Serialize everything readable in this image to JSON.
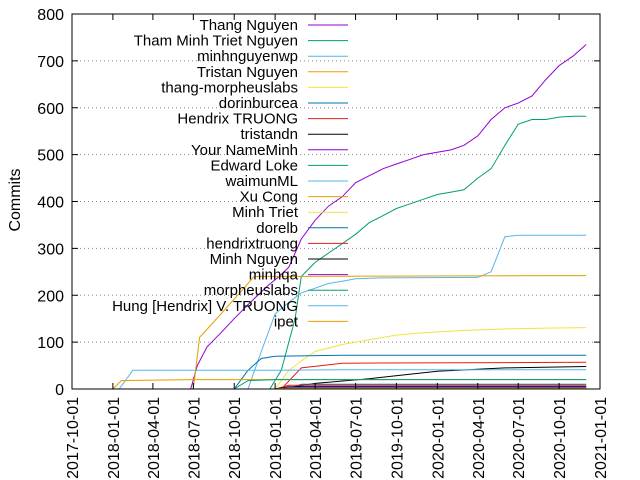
{
  "chart_data": {
    "type": "line",
    "ylabel": "Commits",
    "xlabel": "",
    "ylim": [
      0,
      800
    ],
    "xlim": [
      "2017-10-01",
      "2021-01-01"
    ],
    "grid": {
      "y": true,
      "x": false
    },
    "legend_placement": "top-left",
    "yticks": [
      0,
      100,
      200,
      300,
      400,
      500,
      600,
      700,
      800
    ],
    "xticks": [
      "2017-10-01",
      "2018-01-01",
      "2018-04-01",
      "2018-07-01",
      "2018-10-01",
      "2019-01-01",
      "2019-04-01",
      "2019-07-01",
      "2019-10-01",
      "2020-01-01",
      "2020-04-01",
      "2020-07-01",
      "2020-10-01",
      "2021-01-01"
    ],
    "series": [
      {
        "name": "Thang Nguyen",
        "color": "#9400d3",
        "points": [
          [
            "2018-06-25",
            0
          ],
          [
            "2018-07-10",
            50
          ],
          [
            "2018-08-01",
            90
          ],
          [
            "2018-09-01",
            120
          ],
          [
            "2018-10-01",
            150
          ],
          [
            "2018-11-01",
            180
          ],
          [
            "2018-12-15",
            220
          ],
          [
            "2019-01-10",
            240
          ],
          [
            "2019-02-01",
            260
          ],
          [
            "2019-03-01",
            320
          ],
          [
            "2019-04-01",
            360
          ],
          [
            "2019-05-01",
            390
          ],
          [
            "2019-06-01",
            410
          ],
          [
            "2019-07-01",
            440
          ],
          [
            "2019-08-01",
            455
          ],
          [
            "2019-09-01",
            470
          ],
          [
            "2019-10-01",
            480
          ],
          [
            "2019-11-01",
            490
          ],
          [
            "2019-12-01",
            500
          ],
          [
            "2020-01-01",
            505
          ],
          [
            "2020-02-01",
            510
          ],
          [
            "2020-03-01",
            520
          ],
          [
            "2020-04-01",
            540
          ],
          [
            "2020-05-01",
            575
          ],
          [
            "2020-06-01",
            600
          ],
          [
            "2020-07-01",
            610
          ],
          [
            "2020-08-01",
            625
          ],
          [
            "2020-09-01",
            660
          ],
          [
            "2020-10-01",
            690
          ],
          [
            "2020-11-01",
            710
          ],
          [
            "2020-12-01",
            735
          ]
        ]
      },
      {
        "name": "Tham Minh Triet Nguyen",
        "color": "#009e73",
        "points": [
          [
            "2018-12-20",
            0
          ],
          [
            "2019-01-15",
            40
          ],
          [
            "2019-02-15",
            150
          ],
          [
            "2019-03-01",
            240
          ],
          [
            "2019-04-01",
            270
          ],
          [
            "2019-05-01",
            290
          ],
          [
            "2019-06-01",
            310
          ],
          [
            "2019-07-01",
            330
          ],
          [
            "2019-08-01",
            355
          ],
          [
            "2019-09-01",
            370
          ],
          [
            "2019-10-01",
            385
          ],
          [
            "2019-11-01",
            395
          ],
          [
            "2019-12-01",
            405
          ],
          [
            "2020-01-01",
            415
          ],
          [
            "2020-02-01",
            420
          ],
          [
            "2020-03-01",
            425
          ],
          [
            "2020-04-01",
            450
          ],
          [
            "2020-05-01",
            470
          ],
          [
            "2020-06-01",
            520
          ],
          [
            "2020-07-01",
            565
          ],
          [
            "2020-08-01",
            575
          ],
          [
            "2020-09-01",
            575
          ],
          [
            "2020-10-01",
            580
          ],
          [
            "2020-11-01",
            582
          ],
          [
            "2020-12-01",
            582
          ]
        ]
      },
      {
        "name": "minhnguyenwp",
        "color": "#56b4e9",
        "points": [
          [
            "2018-11-01",
            0
          ],
          [
            "2018-12-01",
            80
          ],
          [
            "2019-01-01",
            160
          ],
          [
            "2019-02-01",
            185
          ],
          [
            "2019-03-01",
            205
          ],
          [
            "2019-04-01",
            215
          ],
          [
            "2019-05-01",
            225
          ],
          [
            "2019-06-01",
            230
          ],
          [
            "2019-07-01",
            235
          ],
          [
            "2019-09-01",
            237
          ],
          [
            "2020-04-01",
            238
          ],
          [
            "2020-05-01",
            250
          ],
          [
            "2020-06-01",
            325
          ],
          [
            "2020-07-01",
            328
          ],
          [
            "2020-12-01",
            328
          ]
        ]
      },
      {
        "name": "Tristan Nguyen",
        "color": "#e69f00",
        "points": [
          [
            "2018-07-01",
            0
          ],
          [
            "2018-07-15",
            110
          ],
          [
            "2018-09-01",
            160
          ],
          [
            "2018-11-15",
            240
          ],
          [
            "2020-12-01",
            242
          ]
        ]
      },
      {
        "name": "thang-morpheuslabs",
        "color": "#f0e442",
        "points": [
          [
            "2019-01-01",
            0
          ],
          [
            "2019-02-01",
            40
          ],
          [
            "2019-03-01",
            60
          ],
          [
            "2019-04-01",
            80
          ],
          [
            "2019-06-01",
            95
          ],
          [
            "2019-08-01",
            105
          ],
          [
            "2019-10-01",
            115
          ],
          [
            "2019-12-01",
            120
          ],
          [
            "2020-03-01",
            125
          ],
          [
            "2020-06-01",
            128
          ],
          [
            "2020-09-01",
            130
          ],
          [
            "2020-12-01",
            131
          ]
        ]
      },
      {
        "name": "dorinburcea",
        "color": "#0072b2",
        "points": [
          [
            "2018-10-01",
            0
          ],
          [
            "2018-11-01",
            40
          ],
          [
            "2018-12-01",
            65
          ],
          [
            "2019-01-01",
            70
          ],
          [
            "2019-06-01",
            72
          ],
          [
            "2020-12-01",
            72
          ]
        ]
      },
      {
        "name": "Hendrix TRUONG",
        "color": "#e51e10",
        "points": [
          [
            "2019-01-15",
            0
          ],
          [
            "2019-03-01",
            45
          ],
          [
            "2019-06-01",
            55
          ],
          [
            "2020-12-01",
            57
          ]
        ]
      },
      {
        "name": "tristandn",
        "color": "#000000",
        "points": [
          [
            "2019-01-15",
            0
          ],
          [
            "2019-04-01",
            12
          ],
          [
            "2019-08-01",
            22
          ],
          [
            "2020-01-01",
            38
          ],
          [
            "2020-06-01",
            45
          ],
          [
            "2020-12-01",
            48
          ]
        ]
      },
      {
        "name": "Your NameMinh",
        "color": "#9400d3",
        "points": [
          [
            "2019-01-01",
            0
          ],
          [
            "2019-03-01",
            5
          ],
          [
            "2020-12-01",
            5
          ]
        ]
      },
      {
        "name": "Edward Loke",
        "color": "#009e73",
        "points": [
          [
            "2019-01-01",
            0
          ],
          [
            "2019-02-01",
            3
          ],
          [
            "2020-12-01",
            3
          ]
        ]
      },
      {
        "name": "waimunML",
        "color": "#56b4e9",
        "points": [
          [
            "2018-01-15",
            0
          ],
          [
            "2018-02-15",
            40
          ],
          [
            "2018-05-01",
            40
          ],
          [
            "2019-01-01",
            40
          ],
          [
            "2019-06-01",
            41
          ],
          [
            "2020-12-01",
            41
          ]
        ]
      },
      {
        "name": "Xu Cong",
        "color": "#e69f00",
        "points": [
          [
            "2018-01-01",
            0
          ],
          [
            "2018-01-20",
            18
          ],
          [
            "2018-07-01",
            20
          ],
          [
            "2020-12-01",
            20
          ]
        ]
      },
      {
        "name": "Minh Triet",
        "color": "#f0e442",
        "points": [
          [
            "2019-03-01",
            0
          ],
          [
            "2019-04-01",
            2
          ],
          [
            "2020-12-01",
            2
          ]
        ]
      },
      {
        "name": "dorelb",
        "color": "#0072b2",
        "points": [
          [
            "2019-02-01",
            0
          ],
          [
            "2019-03-01",
            10
          ],
          [
            "2020-12-01",
            10
          ]
        ]
      },
      {
        "name": "hendrixtruong",
        "color": "#e51e10",
        "points": [
          [
            "2019-01-01",
            0
          ],
          [
            "2019-02-01",
            8
          ],
          [
            "2020-12-01",
            8
          ]
        ]
      },
      {
        "name": "Minh Nguyen",
        "color": "#000000",
        "points": [
          [
            "2019-01-01",
            0
          ],
          [
            "2019-02-01",
            5
          ],
          [
            "2020-12-01",
            5
          ]
        ]
      },
      {
        "name": "minhqa",
        "color": "#9400d3",
        "points": [
          [
            "2019-01-01",
            0
          ],
          [
            "2019-02-01",
            3
          ],
          [
            "2020-12-01",
            3
          ]
        ]
      },
      {
        "name": "morpheuslabs",
        "color": "#009e73",
        "points": [
          [
            "2018-10-01",
            0
          ],
          [
            "2018-11-01",
            18
          ],
          [
            "2019-01-01",
            20
          ],
          [
            "2020-12-01",
            20
          ]
        ]
      },
      {
        "name": "Hung [Hendrix] V. TRUONG",
        "color": "#56b4e9",
        "points": [
          [
            "2019-01-01",
            0
          ],
          [
            "2019-02-01",
            2
          ],
          [
            "2020-12-01",
            2
          ]
        ]
      },
      {
        "name": "ipet",
        "color": "#e69f00",
        "points": [
          [
            "2019-01-01",
            0
          ],
          [
            "2019-01-15",
            1
          ],
          [
            "2020-12-01",
            1
          ]
        ]
      }
    ]
  }
}
